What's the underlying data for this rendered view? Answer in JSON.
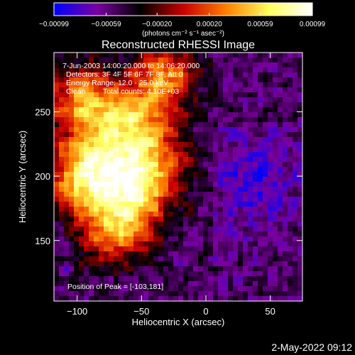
{
  "chart_data": {
    "type": "heatmap",
    "title": "Reconstructed RHESSI Image",
    "xlabel": "Heliocentric X (arcsec)",
    "ylabel": "Heliocentric Y (arcsec)",
    "xlim": [
      -118,
      75
    ],
    "ylim": [
      103,
      296
    ],
    "x_ticks": [
      -100,
      -50,
      0,
      50
    ],
    "y_ticks": [
      150,
      200,
      250
    ],
    "x_tick_labels": [
      "−100",
      "−50",
      "0",
      "50"
    ],
    "y_tick_labels": [
      "150",
      "200",
      "250"
    ],
    "colorbar": {
      "range": [
        -0.00099,
        0.00099
      ],
      "ticks": [
        -0.00099,
        -0.00059,
        -0.0002,
        0.0002,
        0.00059,
        0.00099
      ],
      "tick_labels": [
        "−0.00099",
        "−0.00059",
        "−0.00020",
        "0.00020",
        "0.00059",
        "0.00099"
      ],
      "units_label": "(photons cm⁻² s⁻¹ asec⁻²)",
      "colors": [
        "#0000ff",
        "#7a00a0",
        "#000000",
        "#c80000",
        "#ff8000",
        "#ffff60",
        "#ffffff"
      ]
    },
    "annotations": {
      "time": "7-Jun-2003 14:00:20.000 to 14:06:20.000",
      "detectors": "Detectors: 3F 4F 5F 6F 7F 8F, Att 0",
      "energy": "Energy Range: 12.0 - 25.0 keV",
      "clean": "Clean",
      "counts": "Total counts: 4.10E+03",
      "peak": "Position of Peak = [-103,181]"
    },
    "peak_position": [
      -103,
      181
    ]
  },
  "footer": {
    "date": "2-May-2022 09:12"
  }
}
